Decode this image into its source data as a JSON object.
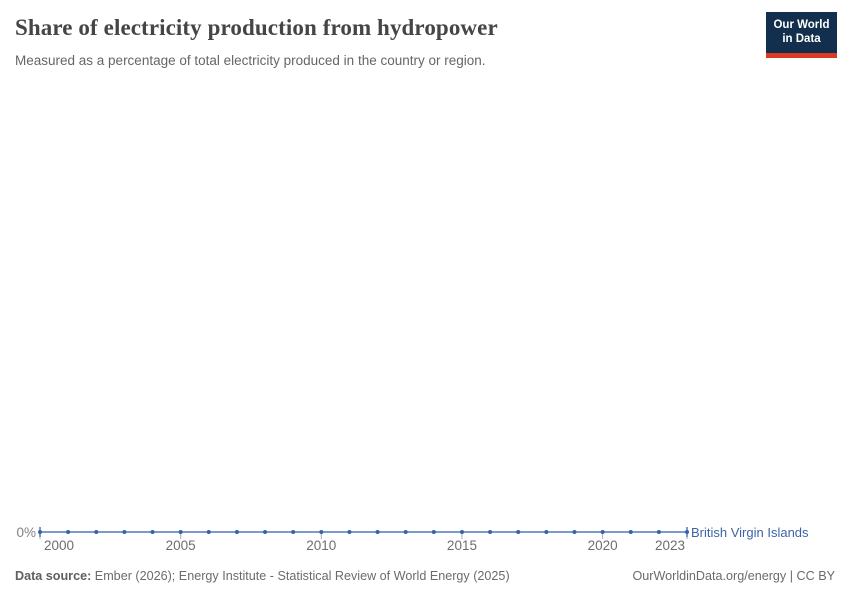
{
  "header": {
    "title": "Share of electricity production from hydropower",
    "subtitle": "Measured as a percentage of total electricity produced in the country or region."
  },
  "logo": {
    "line1": "Our World",
    "line2": "in Data",
    "bg_color": "#12304E",
    "accent_color": "#DC3B23"
  },
  "axes": {
    "y_zero_label": "0%"
  },
  "entity_label": "British Virgin Islands",
  "chart_data": {
    "type": "line",
    "title": "Share of electricity production from hydropower",
    "subtitle": "Measured as a percentage of total electricity produced in the country or region.",
    "x": [
      2000,
      2001,
      2002,
      2003,
      2004,
      2005,
      2006,
      2007,
      2008,
      2009,
      2010,
      2011,
      2012,
      2013,
      2014,
      2015,
      2016,
      2017,
      2018,
      2019,
      2020,
      2021,
      2022,
      2023
    ],
    "series": [
      {
        "name": "British Virgin Islands",
        "color": "#5379BC",
        "marker_color": "#3A60A6",
        "values": [
          0,
          0,
          0,
          0,
          0,
          0,
          0,
          0,
          0,
          0,
          0,
          0,
          0,
          0,
          0,
          0,
          0,
          0,
          0,
          0,
          0,
          0,
          0,
          0
        ]
      }
    ],
    "xlabel": "",
    "ylabel": "",
    "x_ticks": [
      2000,
      2005,
      2010,
      2015,
      2020,
      2023
    ],
    "y_tick_labels": [
      "0%"
    ],
    "ylim": [
      0,
      0
    ],
    "grid": false,
    "legend_position": "right-of-line",
    "tick_color": "#a9a9a9"
  },
  "footer": {
    "datasource_label": "Data source:",
    "datasource_text": " Ember (2026); Energy Institute - Statistical Review of World Energy (2025)",
    "rights": "OurWorldinData.org/energy | CC BY"
  }
}
